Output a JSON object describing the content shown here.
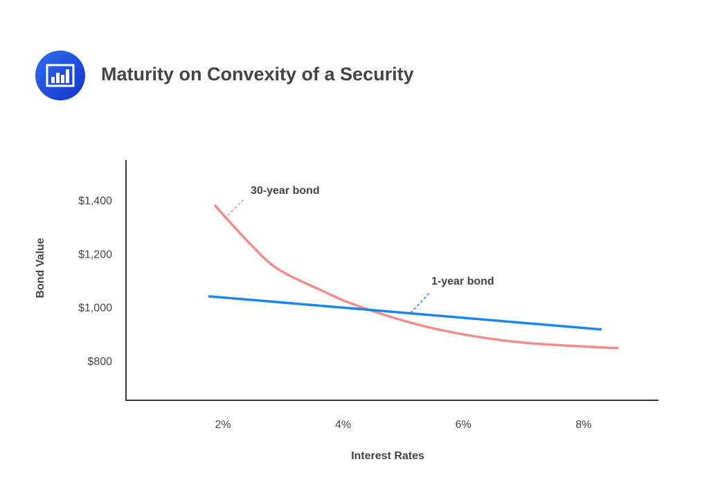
{
  "header": {
    "title": "Maturity on Convexity of a Security",
    "icon": "bar-chart-icon"
  },
  "chart_data": {
    "type": "line",
    "title": "Maturity on Convexity of a Security",
    "xlabel": "Interest Rates",
    "ylabel": "Bond Value",
    "x_ticks": [
      "2%",
      "4%",
      "6%",
      "8%"
    ],
    "x_tick_values": [
      2,
      4,
      6,
      8
    ],
    "y_ticks": [
      "$800",
      "$1,000",
      "$1,200",
      "$1,400"
    ],
    "y_tick_values": [
      800,
      1000,
      1200,
      1400
    ],
    "xlim": [
      0.6,
      9.5
    ],
    "ylim": [
      650,
      1540
    ],
    "grid": false,
    "series": [
      {
        "name": "30-year bond",
        "color": "#f48b8b",
        "x": [
          1.86,
          2.46,
          2.92,
          3.63,
          4.22,
          5.25,
          6.2,
          7.15,
          8.58
        ],
        "y": [
          1382,
          1235,
          1142,
          1064,
          1007,
          935,
          891,
          865,
          847
        ]
      },
      {
        "name": "1-year bond",
        "color": "#1a86e8",
        "x": [
          1.76,
          8.3
        ],
        "y": [
          1041,
          917
        ]
      }
    ],
    "annotations": [
      {
        "text": "30-year bond",
        "series": 0
      },
      {
        "text": "1-year bond",
        "series": 1
      }
    ]
  }
}
